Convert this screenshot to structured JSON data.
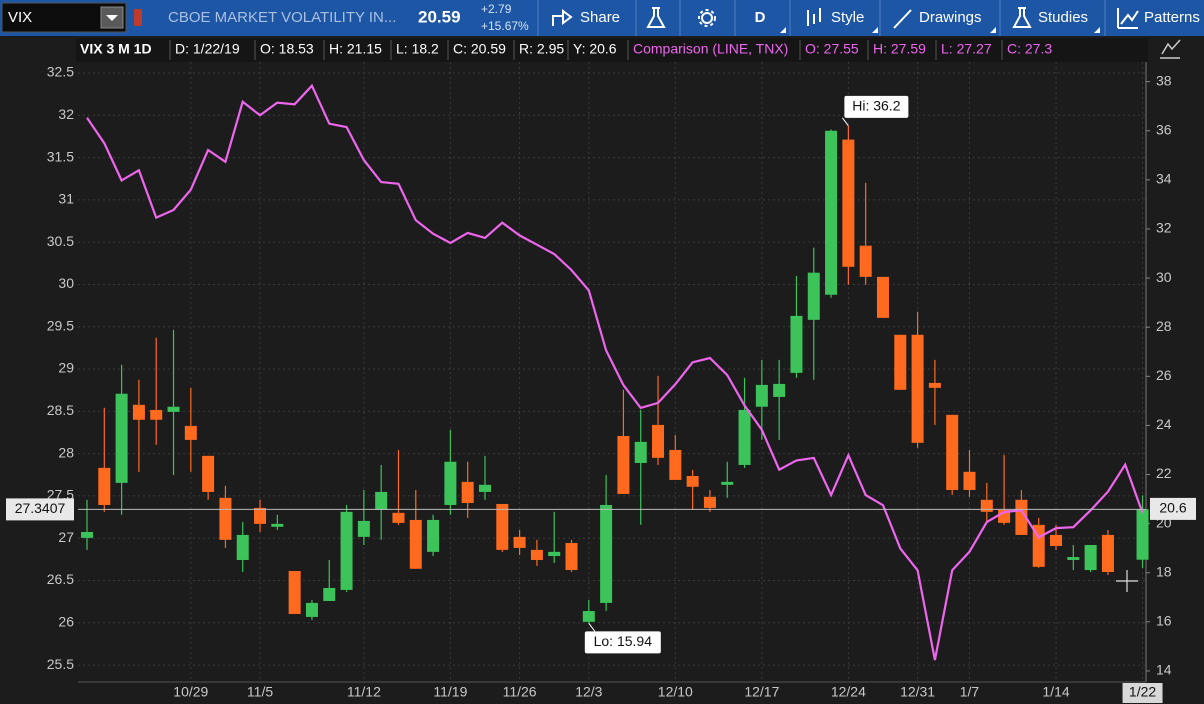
{
  "toolbar": {
    "symbol": "VIX",
    "description": "CBOE MARKET VOLATILITY IN...",
    "last": "20.59",
    "change": "+2.79",
    "change_pct": "+15.67%",
    "buttons": [
      "Share",
      "D",
      "Style",
      "Drawings",
      "Studies",
      "Patterns"
    ]
  },
  "info_bar": {
    "study": "VIX 3 M 1D",
    "fields": [
      "D: 1/22/19",
      "O: 18.53",
      "H: 21.15",
      "L: 18.2",
      "C: 20.59",
      "R: 2.95",
      "Y: 20.6"
    ],
    "comparison": "Comparison (LINE, TNX)",
    "comparison_fields": [
      "O: 27.55",
      "H: 27.59",
      "L: 27.27",
      "C: 27.3"
    ]
  },
  "chart_data": {
    "type": "candlestick",
    "xlim": [
      -0.52,
      61.2
    ],
    "xticks": [
      {
        "value": 6,
        "label": "10/29"
      },
      {
        "value": 10,
        "label": "11/5"
      },
      {
        "value": 16,
        "label": "11/12"
      },
      {
        "value": 21,
        "label": "11/19"
      },
      {
        "value": 25,
        "label": "11/26"
      },
      {
        "value": 29,
        "label": "12/3"
      },
      {
        "value": 34,
        "label": "12/10"
      },
      {
        "value": 39,
        "label": "12/17"
      },
      {
        "value": 44,
        "label": "12/24"
      },
      {
        "value": 48,
        "label": "12/31"
      },
      {
        "value": 51,
        "label": "1/7"
      },
      {
        "value": 56,
        "label": "1/14"
      },
      {
        "value": 61,
        "label": "1/22"
      }
    ],
    "ylim": [
      13.55,
      38.8
    ],
    "yticks": [
      14,
      16,
      18,
      20,
      22,
      24,
      26,
      28,
      30,
      32,
      34,
      36,
      38
    ],
    "y2lim": [
      25.3,
      32.63
    ],
    "y2ticks": [
      25.5,
      26,
      26.5,
      27,
      27.5,
      28,
      28.5,
      29,
      29.5,
      30,
      30.5,
      31,
      31.5,
      32,
      32.5
    ],
    "grid": true,
    "series": [
      {
        "type": "candlestick",
        "up_color": "#3cc45a",
        "down_color": "#ff6a1f",
        "open": [
          19.42,
          22.27,
          21.66,
          24.84,
          24.63,
          24.55,
          23.98,
          22.76,
          21.05,
          18.52,
          20.64,
          19.87,
          18.07,
          16.2,
          16.85,
          17.3,
          19.46,
          20.56,
          20.44,
          20.15,
          18.85,
          20.76,
          21.7,
          21.29,
          20.8,
          19.46,
          18.93,
          18.68,
          19.21,
          16.0,
          16.77,
          23.57,
          22.47,
          24.02,
          23.0,
          21.94,
          21.09,
          21.58,
          22.39,
          24.76,
          25.16,
          26.14,
          28.3,
          29.32,
          35.64,
          31.32,
          30.05,
          27.69,
          27.69,
          25.73,
          24.43,
          22.11,
          20.97,
          20.56,
          20.97,
          19.95,
          19.54,
          18.52,
          18.11,
          19.54,
          null,
          18.53
        ],
        "high": [
          20.97,
          24.72,
          26.47,
          25.86,
          27.57,
          27.89,
          25.53,
          22.76,
          21.54,
          20.07,
          20.97,
          20.36,
          18.07,
          16.89,
          18.52,
          20.76,
          21.37,
          22.39,
          23.0,
          21.37,
          20.36,
          23.82,
          22.52,
          22.76,
          20.8,
          19.74,
          19.34,
          20.48,
          19.34,
          16.89,
          21.98,
          25.45,
          24.63,
          26.02,
          23.61,
          22.19,
          21.37,
          22.52,
          25.94,
          26.67,
          26.67,
          30.09,
          31.24,
          36.05,
          36.2,
          33.88,
          30.05,
          27.69,
          28.63,
          26.67,
          24.43,
          23.0,
          21.66,
          22.8,
          21.37,
          20.23,
          19.95,
          19.13,
          19.13,
          19.74,
          null,
          21.15
        ],
        "low": [
          18.93,
          20.48,
          20.36,
          22.11,
          23.21,
          21.98,
          22.11,
          20.97,
          19.01,
          18.03,
          19.66,
          19.74,
          16.32,
          16.08,
          16.85,
          17.22,
          19.13,
          19.34,
          19.95,
          18.16,
          18.68,
          20.36,
          20.23,
          20.97,
          18.85,
          18.72,
          18.28,
          18.4,
          18.03,
          15.94,
          16.44,
          21.21,
          19.95,
          22.39,
          21.78,
          20.56,
          20.48,
          21.05,
          22.27,
          23.41,
          23.41,
          25.94,
          25.86,
          29.2,
          29.73,
          29.73,
          28.38,
          25.45,
          23.09,
          24.02,
          21.17,
          21.09,
          20.07,
          19.95,
          19.54,
          18.2,
          18.93,
          18.11,
          18.03,
          17.91,
          null,
          18.2
        ],
        "close": [
          19.66,
          20.76,
          25.29,
          24.23,
          24.23,
          24.76,
          23.41,
          21.29,
          19.34,
          19.54,
          19.99,
          19.99,
          16.32,
          16.77,
          17.38,
          20.48,
          20.11,
          21.29,
          20.03,
          18.16,
          20.15,
          22.52,
          20.84,
          21.58,
          18.93,
          19.01,
          18.52,
          18.85,
          18.11,
          16.44,
          20.76,
          21.21,
          23.33,
          22.68,
          21.78,
          21.5,
          20.64,
          21.7,
          24.63,
          25.65,
          25.69,
          28.46,
          30.22,
          36.0,
          30.46,
          30.05,
          28.38,
          25.45,
          23.29,
          25.53,
          21.37,
          21.37,
          20.48,
          20.03,
          19.54,
          18.24,
          19.09,
          18.64,
          19.13,
          18.03,
          null,
          20.59
        ]
      },
      {
        "type": "line",
        "axis": "y2",
        "color": "#ee66ee",
        "values": [
          31.97,
          31.67,
          31.23,
          31.35,
          30.79,
          30.88,
          31.12,
          31.59,
          31.45,
          32.16,
          32.0,
          32.15,
          32.13,
          32.35,
          31.9,
          31.86,
          31.47,
          31.21,
          31.19,
          30.76,
          30.6,
          30.49,
          30.61,
          30.55,
          30.73,
          30.58,
          30.47,
          30.36,
          30.17,
          29.93,
          29.22,
          28.81,
          28.54,
          28.6,
          28.82,
          29.08,
          29.13,
          28.93,
          28.57,
          28.28,
          27.81,
          27.92,
          27.95,
          27.51,
          27.98,
          27.51,
          27.39,
          26.88,
          26.62,
          25.56,
          26.62,
          26.84,
          27.19,
          27.31,
          27.33,
          27.01,
          27.12,
          27.13,
          27.33,
          27.55,
          27.87,
          27.3
        ]
      }
    ],
    "annotations": [
      {
        "text": "Hi: 36.2"
      },
      {
        "text": "Lo: 15.94"
      }
    ],
    "left_marker": 27.3407,
    "right_marker": 20.6
  }
}
